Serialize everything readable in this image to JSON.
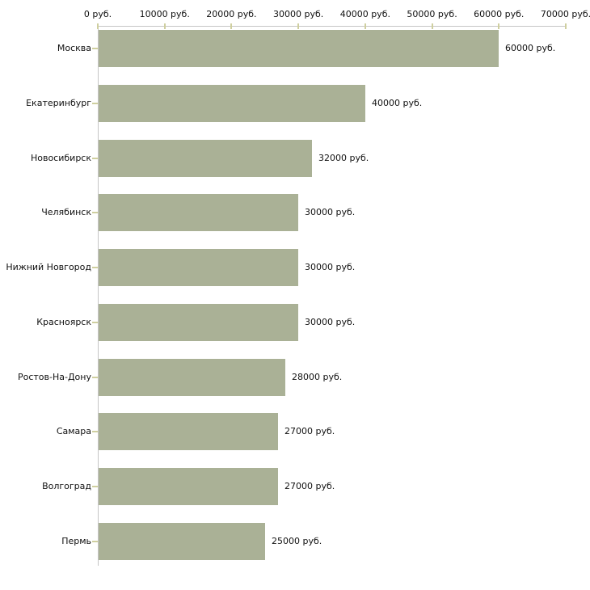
{
  "chart_data": {
    "type": "bar",
    "orientation": "horizontal",
    "title": "",
    "xlabel": "",
    "ylabel": "",
    "grid": false,
    "legend": null,
    "unit_suffix": " руб.",
    "categories": [
      "Москва",
      "Екатеринбург",
      "Новосибирск",
      "Челябинск",
      "Нижний Новгород",
      "Красноярск",
      "Ростов-На-Дону",
      "Самара",
      "Волгоград",
      "Пермь"
    ],
    "values": [
      60000,
      40000,
      32000,
      30000,
      30000,
      30000,
      28000,
      27000,
      27000,
      25000
    ],
    "value_labels": [
      "60000 руб.",
      "40000 руб.",
      "32000 руб.",
      "30000 руб.",
      "30000 руб.",
      "30000 руб.",
      "28000 руб.",
      "27000 руб.",
      "27000 руб.",
      "25000 руб."
    ],
    "xlim": [
      0,
      70000
    ],
    "x_ticks": [
      0,
      10000,
      20000,
      30000,
      40000,
      50000,
      60000,
      70000
    ],
    "x_tick_labels": [
      "0 руб.",
      "10000 руб.",
      "20000 руб.",
      "30000 руб.",
      "40000 руб.",
      "50000 руб.",
      "60000 руб.",
      "70000 руб."
    ],
    "colors": {
      "bar": "#aab196",
      "axis_line": "#c6c6c6",
      "tick": "#cfcf9f",
      "text": "#111111",
      "background": "#ffffff"
    }
  }
}
